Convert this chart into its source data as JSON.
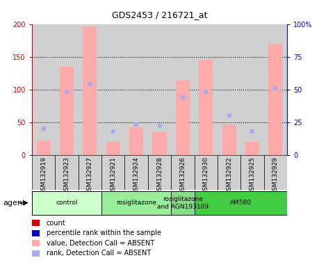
{
  "title": "GDS2453 / 216721_at",
  "samples": [
    "GSM132919",
    "GSM132923",
    "GSM132927",
    "GSM132921",
    "GSM132924",
    "GSM132928",
    "GSM132926",
    "GSM132930",
    "GSM132922",
    "GSM132925",
    "GSM132929"
  ],
  "pink_bars": [
    22,
    135,
    196,
    20,
    42,
    35,
    113,
    145,
    47,
    20,
    170
  ],
  "blue_squares_pct": [
    20,
    48,
    54,
    18,
    23,
    22,
    44,
    48,
    30,
    18,
    51
  ],
  "ylim_left": [
    0,
    200
  ],
  "ylim_right": [
    0,
    100
  ],
  "yticks_left": [
    0,
    50,
    100,
    150,
    200
  ],
  "yticks_right": [
    0,
    25,
    50,
    75,
    100
  ],
  "ytick_labels_left": [
    "0",
    "50",
    "100",
    "150",
    "200"
  ],
  "ytick_labels_right": [
    "0",
    "25",
    "50",
    "75",
    "100%"
  ],
  "groups": [
    {
      "label": "control",
      "start": 0,
      "end": 3,
      "color": "#ccffcc"
    },
    {
      "label": "rosiglitazone",
      "start": 3,
      "end": 6,
      "color": "#99ee99"
    },
    {
      "label": "rosiglitazone\nand AGN193109",
      "start": 6,
      "end": 7,
      "color": "#88dd88"
    },
    {
      "label": "AM580",
      "start": 7,
      "end": 11,
      "color": "#44cc44"
    }
  ],
  "pink_bar_color": "#ffaaaa",
  "blue_sq_color": "#aaaaee",
  "legend_red_color": "#cc0000",
  "legend_blue_color": "#0000cc",
  "legend_pink_color": "#ffaaaa",
  "legend_lav_color": "#aaaaee",
  "left_axis_color": "#cc0000",
  "right_axis_color": "#0000cc",
  "grid_color": "#000000",
  "sample_bg_color": "#d0d0d0",
  "plot_bg_color": "#ffffff"
}
